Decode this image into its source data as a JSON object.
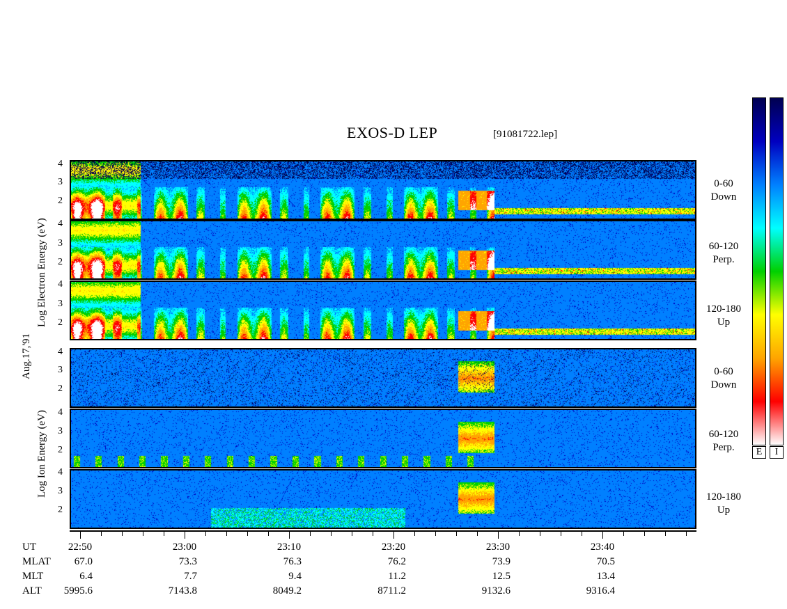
{
  "title": "EXOS-D LEP",
  "file_label": "[91081722.lep]",
  "date_label": "Aug.17,'91",
  "colors": {
    "scale": [
      "#ffffff",
      "#ff0000",
      "#ffa500",
      "#ffff00",
      "#00d000",
      "#00ffff",
      "#0080ff",
      "#0000c0",
      "#000050"
    ]
  },
  "chart_data": [
    {
      "type": "heatmap",
      "species": "Electron",
      "ylabel": "Log Electron Energy (eV)",
      "yticks": [
        "4",
        "3",
        "2"
      ],
      "panels": [
        {
          "pitch_angle": "0-60",
          "direction": "Down"
        },
        {
          "pitch_angle": "60-120",
          "direction": "Perp."
        },
        {
          "pitch_angle": "120-180",
          "direction": "Up"
        }
      ]
    },
    {
      "type": "heatmap",
      "species": "Ion",
      "ylabel": "Log Ion Energy (eV)",
      "yticks": [
        "4",
        "3",
        "2"
      ],
      "panels": [
        {
          "pitch_angle": "0-60",
          "direction": "Down"
        },
        {
          "pitch_angle": "60-120",
          "direction": "Perp."
        },
        {
          "pitch_angle": "120-180",
          "direction": "Up"
        }
      ]
    }
  ],
  "ephemeris": {
    "rows": [
      "UT",
      "MLAT",
      "MLT",
      "ALT"
    ],
    "columns": [
      {
        "UT": "22:50",
        "MLAT": "67.0",
        "MLT": "6.4",
        "ALT": "5995.6"
      },
      {
        "UT": "23:00",
        "MLAT": "73.3",
        "MLT": "7.7",
        "ALT": "7143.8"
      },
      {
        "UT": "23:10",
        "MLAT": "76.3",
        "MLT": "9.4",
        "ALT": "8049.2"
      },
      {
        "UT": "23:20",
        "MLAT": "76.2",
        "MLT": "11.2",
        "ALT": "8711.2"
      },
      {
        "UT": "23:30",
        "MLAT": "73.9",
        "MLT": "12.5",
        "ALT": "9132.6"
      },
      {
        "UT": "23:40",
        "MLAT": "70.5",
        "MLT": "13.4",
        "ALT": "9316.4"
      }
    ]
  },
  "colorbars": [
    {
      "label": "E"
    },
    {
      "label": "I"
    }
  ]
}
